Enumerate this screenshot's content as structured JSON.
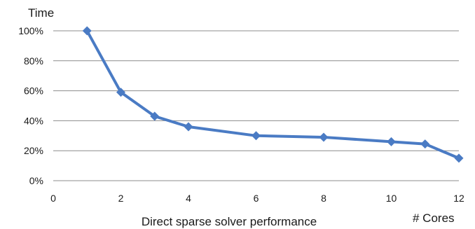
{
  "chart_data": {
    "type": "line",
    "title": "",
    "xlabel": "# Cores",
    "ylabel": "Time",
    "caption": "Direct sparse solver performance",
    "xlim": [
      0,
      12
    ],
    "ylim": [
      0,
      100
    ],
    "x_ticks": [
      "0",
      "2",
      "4",
      "6",
      "8",
      "10",
      "12"
    ],
    "y_ticks": [
      "0%",
      "20%",
      "40%",
      "60%",
      "80%",
      "100%"
    ],
    "grid": true,
    "legend": "none",
    "series": [
      {
        "color": "#4a7bc4",
        "marker": "diamond",
        "x": [
          1,
          2,
          3,
          4,
          6,
          8,
          10,
          11,
          12
        ],
        "y": [
          100,
          59,
          43,
          36,
          30,
          29,
          26,
          24.5,
          15
        ]
      }
    ]
  }
}
